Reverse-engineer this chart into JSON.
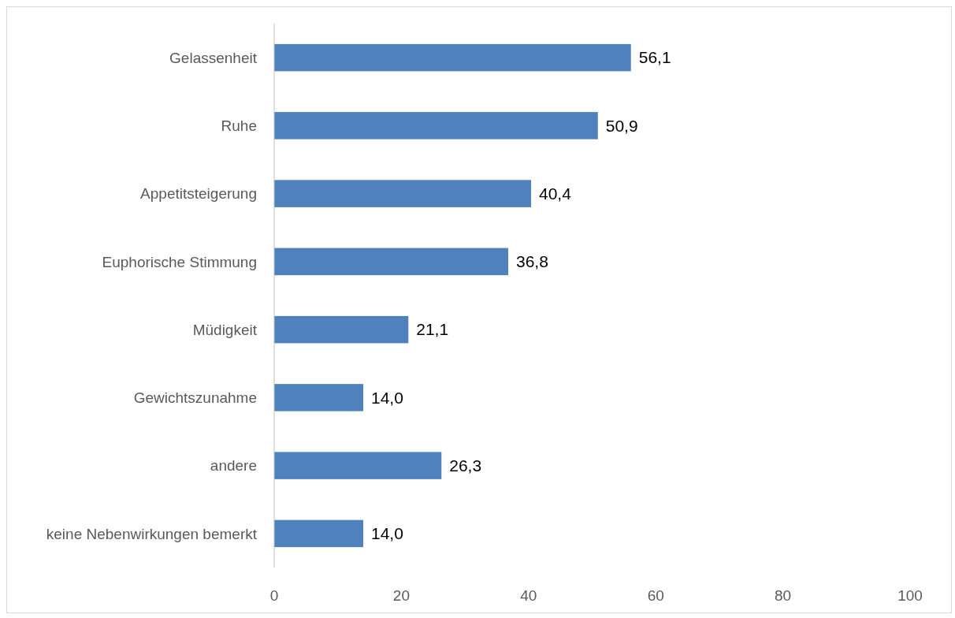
{
  "chart_data": {
    "type": "bar",
    "orientation": "horizontal",
    "categories": [
      "Gelassenheit",
      "Ruhe",
      "Appetitsteigerung",
      "Euphorische Stimmung",
      "Müdigkeit",
      "Gewichtszunahme",
      "andere",
      "keine Nebenwirkungen bemerkt"
    ],
    "values": [
      56.1,
      50.9,
      40.4,
      36.8,
      21.1,
      14.0,
      26.3,
      14.0
    ],
    "value_labels": [
      "56,1",
      "50,9",
      "40,4",
      "36,8",
      "21,1",
      "14,0",
      "26,3",
      "14,0"
    ],
    "color": "#4f81bd",
    "xlim": [
      0,
      100
    ],
    "xticks": [
      0,
      20,
      40,
      60,
      80,
      100
    ],
    "grid": false
  }
}
